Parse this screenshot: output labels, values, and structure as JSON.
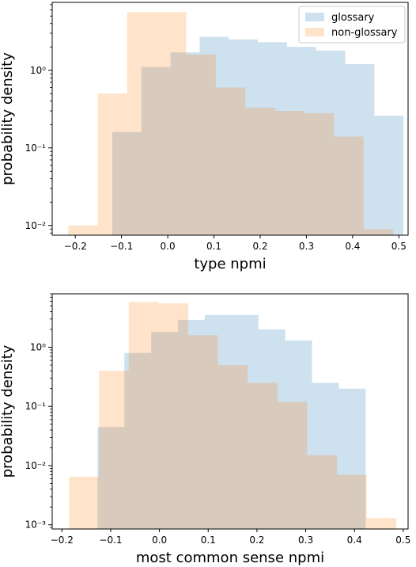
{
  "colors": {
    "glossary": "#1f77b4",
    "non_glossary": "#ff7f0e",
    "axis": "#000000",
    "legend_border": "#cccccc"
  },
  "chart_data": [
    {
      "type": "histogram",
      "xlabel": "type npmi",
      "ylabel": "probability density",
      "yscale": "log",
      "xlim": [
        -0.25,
        0.52
      ],
      "ylim": [
        0.0075,
        7.5
      ],
      "xticks": [
        -0.2,
        -0.1,
        0.0,
        0.1,
        0.2,
        0.3,
        0.4,
        0.5
      ],
      "xtick_labels": [
        "−0.2",
        "−0.1",
        "0.0",
        "0.1",
        "0.2",
        "0.3",
        "0.4",
        "0.5"
      ],
      "yticks": [
        0.01,
        0.1,
        1
      ],
      "ytick_labels": [
        "10⁻²",
        "10⁻¹",
        "10⁰"
      ],
      "grid": false,
      "legend": {
        "placement": "top-right",
        "entries": [
          {
            "label": "glossary",
            "series": "glossary"
          },
          {
            "label": "non-glossary",
            "series": "non_glossary"
          }
        ]
      },
      "series": [
        {
          "name": "glossary",
          "bin_edges": [
            -0.12,
            -0.057,
            0.006,
            0.069,
            0.132,
            0.195,
            0.258,
            0.321,
            0.384,
            0.447,
            0.51
          ],
          "values": [
            0.16,
            1.1,
            1.7,
            2.7,
            2.5,
            2.3,
            2.0,
            1.8,
            1.2,
            0.26
          ]
        },
        {
          "name": "non-glossary",
          "bin_edges": [
            -0.215,
            -0.151,
            -0.088,
            -0.024,
            0.04,
            0.104,
            0.168,
            0.232,
            0.296,
            0.36,
            0.424,
            0.488
          ],
          "values": [
            0.01,
            0.5,
            5.6,
            5.6,
            1.6,
            0.6,
            0.33,
            0.3,
            0.28,
            0.14,
            0.009
          ]
        }
      ]
    },
    {
      "type": "histogram",
      "xlabel": "most common sense npmi",
      "ylabel": "probability density",
      "yscale": "log",
      "xlim": [
        -0.22,
        0.51
      ],
      "ylim": [
        0.00085,
        8
      ],
      "xticks": [
        -0.2,
        -0.1,
        0.0,
        0.1,
        0.2,
        0.3,
        0.4,
        0.5
      ],
      "xtick_labels": [
        "−0.2",
        "−0.1",
        "0.0",
        "0.1",
        "0.2",
        "0.3",
        "0.4",
        "0.5"
      ],
      "yticks": [
        0.001,
        0.01,
        0.1,
        1
      ],
      "ytick_labels": [
        "10⁻³",
        "10⁻²",
        "10⁻¹",
        "10⁰"
      ],
      "grid": false,
      "series": [
        {
          "name": "glossary",
          "bin_edges": [
            -0.127,
            -0.072,
            -0.017,
            0.038,
            0.093,
            0.148,
            0.203,
            0.258,
            0.313,
            0.368,
            0.423
          ],
          "values": [
            0.045,
            0.8,
            1.8,
            2.9,
            3.5,
            3.5,
            2.0,
            1.3,
            0.25,
            0.2
          ]
        },
        {
          "name": "non-glossary",
          "bin_edges": [
            -0.185,
            -0.124,
            -0.063,
            -0.002,
            0.059,
            0.12,
            0.181,
            0.242,
            0.303,
            0.364,
            0.425,
            0.486
          ],
          "values": [
            0.0065,
            0.4,
            5.8,
            5.5,
            1.6,
            0.5,
            0.25,
            0.12,
            0.015,
            0.007,
            0.0013
          ]
        }
      ]
    }
  ]
}
